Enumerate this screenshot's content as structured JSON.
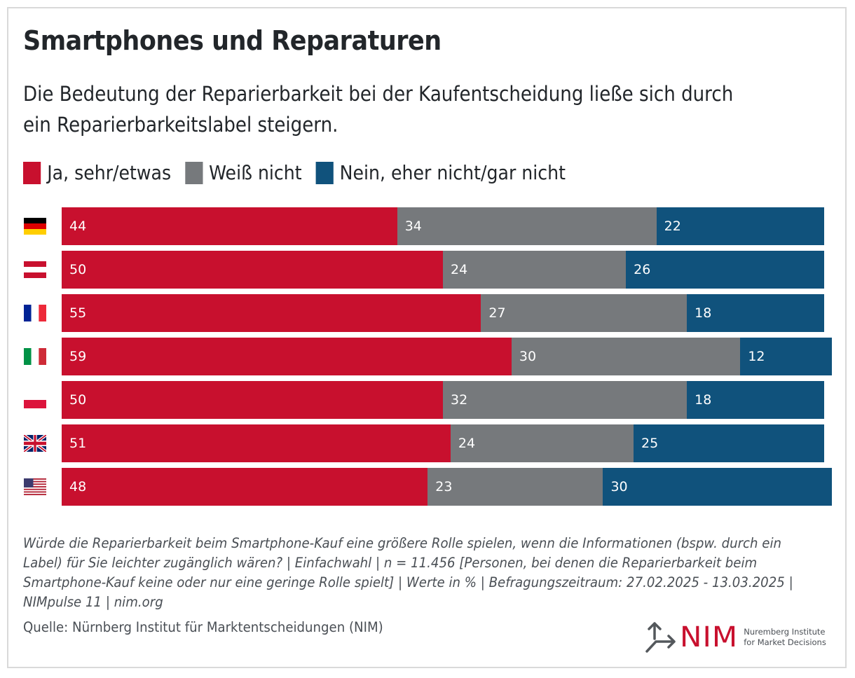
{
  "header": {
    "title": "Smartphones und Reparaturen",
    "subtitle": "Die Bedeutung der Reparierbarkeit bei der Kaufentscheidung ließe sich durch ein Reparierbarkeitslabel steigern."
  },
  "colors": {
    "yes": "#c8102e",
    "unknown": "#76797c",
    "no": "#10527c"
  },
  "chart_data": {
    "type": "bar",
    "orientation": "horizontal",
    "stacked": true,
    "title": "Smartphones und Reparaturen",
    "subtitle": "Die Bedeutung der Reparierbarkeit bei der Kaufentscheidung ließe sich durch ein Reparierbarkeitslabel steigern.",
    "xlabel": "",
    "ylabel": "",
    "unit": "%",
    "xlim": [
      0,
      100
    ],
    "grid": false,
    "legend_position": "top-left",
    "categories": [
      "Deutschland",
      "Österreich",
      "Frankreich",
      "Italien",
      "Polen",
      "Vereinigtes Königreich",
      "USA"
    ],
    "category_icons": [
      "flag-de",
      "flag-at",
      "flag-fr",
      "flag-it",
      "flag-pl",
      "flag-gb",
      "flag-us"
    ],
    "series": [
      {
        "name": "Ja, sehr/etwas",
        "color": "#c8102e",
        "values": [
          44,
          50,
          55,
          59,
          50,
          51,
          48
        ]
      },
      {
        "name": "Weiß nicht",
        "color": "#76797c",
        "values": [
          34,
          24,
          27,
          30,
          32,
          24,
          23
        ]
      },
      {
        "name": "Nein, eher nicht/gar nicht",
        "color": "#10527c",
        "values": [
          22,
          26,
          18,
          12,
          18,
          25,
          30
        ]
      }
    ]
  },
  "footer": {
    "note": "Würde die Reparierbarkeit beim Smartphone-Kauf eine größere Rolle spielen, wenn die Informationen (bspw. durch ein Label) für Sie leichter zugänglich wären? | Einfachwahl | n = 11.456 [Personen, bei denen die Reparierbarkeit beim Smartphone-Kauf keine oder nur eine geringe Rolle spielt] | Werte in % | Befragungszeitraum: 27.02.2025 - 13.03.2025 | NIMpulse 11 | nim.org",
    "source": "Quelle: Nürnberg Institut für Marktentscheidungen (NIM)"
  },
  "logo": {
    "mark": "NIM",
    "line1": "Nuremberg Institute",
    "line2": "for Market Decisions",
    "icon": "arrows-icon"
  }
}
